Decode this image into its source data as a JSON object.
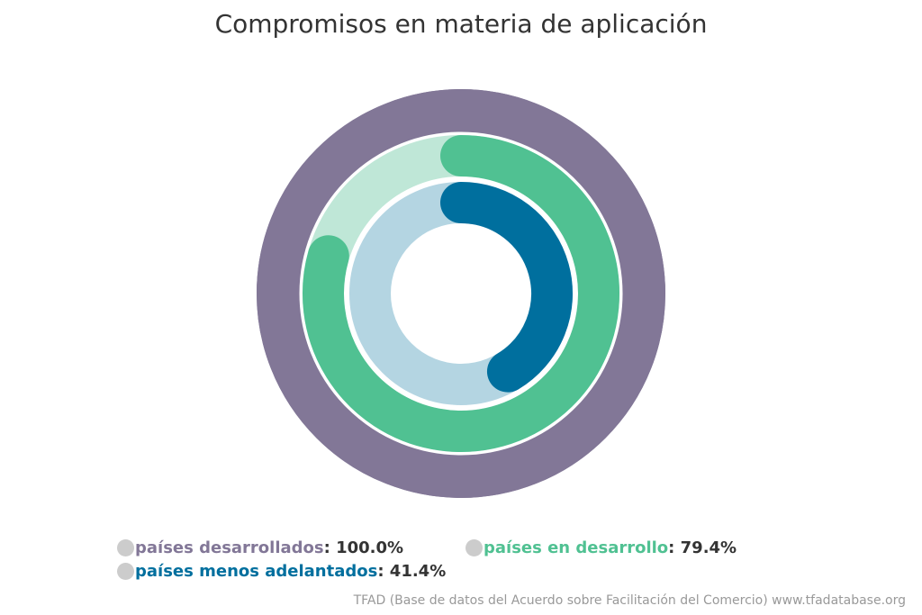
{
  "chart_data": {
    "type": "radial-bar",
    "title": "Compromisos en materia de aplicación",
    "unit": "%",
    "max": 100,
    "series": [
      {
        "name": "países desarrollados",
        "value": 100.0,
        "value_label": "100.0%",
        "color": "#827797",
        "track_color": "#827797"
      },
      {
        "name": "países en desarrollo",
        "value": 79.4,
        "value_label": "79.4%",
        "color": "#50c192",
        "track_color": "#bfe7d7"
      },
      {
        "name": "países menos adelantados",
        "value": 41.4,
        "value_label": "41.4%",
        "color": "#006f9e",
        "track_color": "#b4d5e2"
      }
    ],
    "legend_position": "bottom"
  },
  "credit": "TFAD (Base de datos del Acuerdo sobre Facilitación del Comercio) www.tfadatabase.org"
}
